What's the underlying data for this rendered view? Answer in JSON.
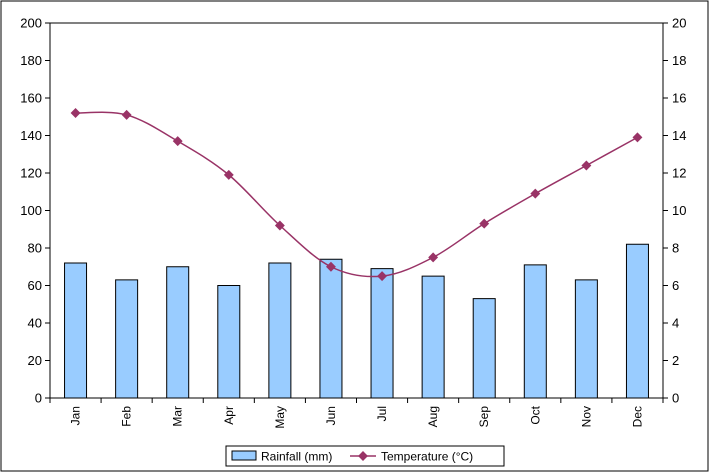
{
  "chart_data": {
    "type": "bar",
    "categories": [
      "Jan",
      "Feb",
      "Mar",
      "Apr",
      "May",
      "Jun",
      "Jul",
      "Aug",
      "Sep",
      "Oct",
      "Nov",
      "Dec"
    ],
    "series": [
      {
        "name": "Rainfall (mm)",
        "type": "bar",
        "axis": "left",
        "values": [
          72,
          63,
          70,
          60,
          72,
          74,
          69,
          65,
          53,
          71,
          63,
          82
        ]
      },
      {
        "name": "Temperature (°C)",
        "type": "line",
        "axis": "right",
        "values": [
          15.2,
          15.1,
          13.7,
          11.9,
          9.2,
          7.0,
          6.5,
          7.5,
          9.3,
          10.9,
          12.4,
          13.9
        ]
      }
    ],
    "y_left": {
      "min": 0,
      "max": 200,
      "step": 20
    },
    "y_right": {
      "min": 0,
      "max": 20,
      "step": 2
    },
    "grid": false,
    "legend_position": "bottom",
    "colors": {
      "bar_fill": "#99ccff",
      "bar_stroke": "#000000",
      "line": "#993366",
      "marker": "#993366",
      "frame": "#000000"
    }
  }
}
